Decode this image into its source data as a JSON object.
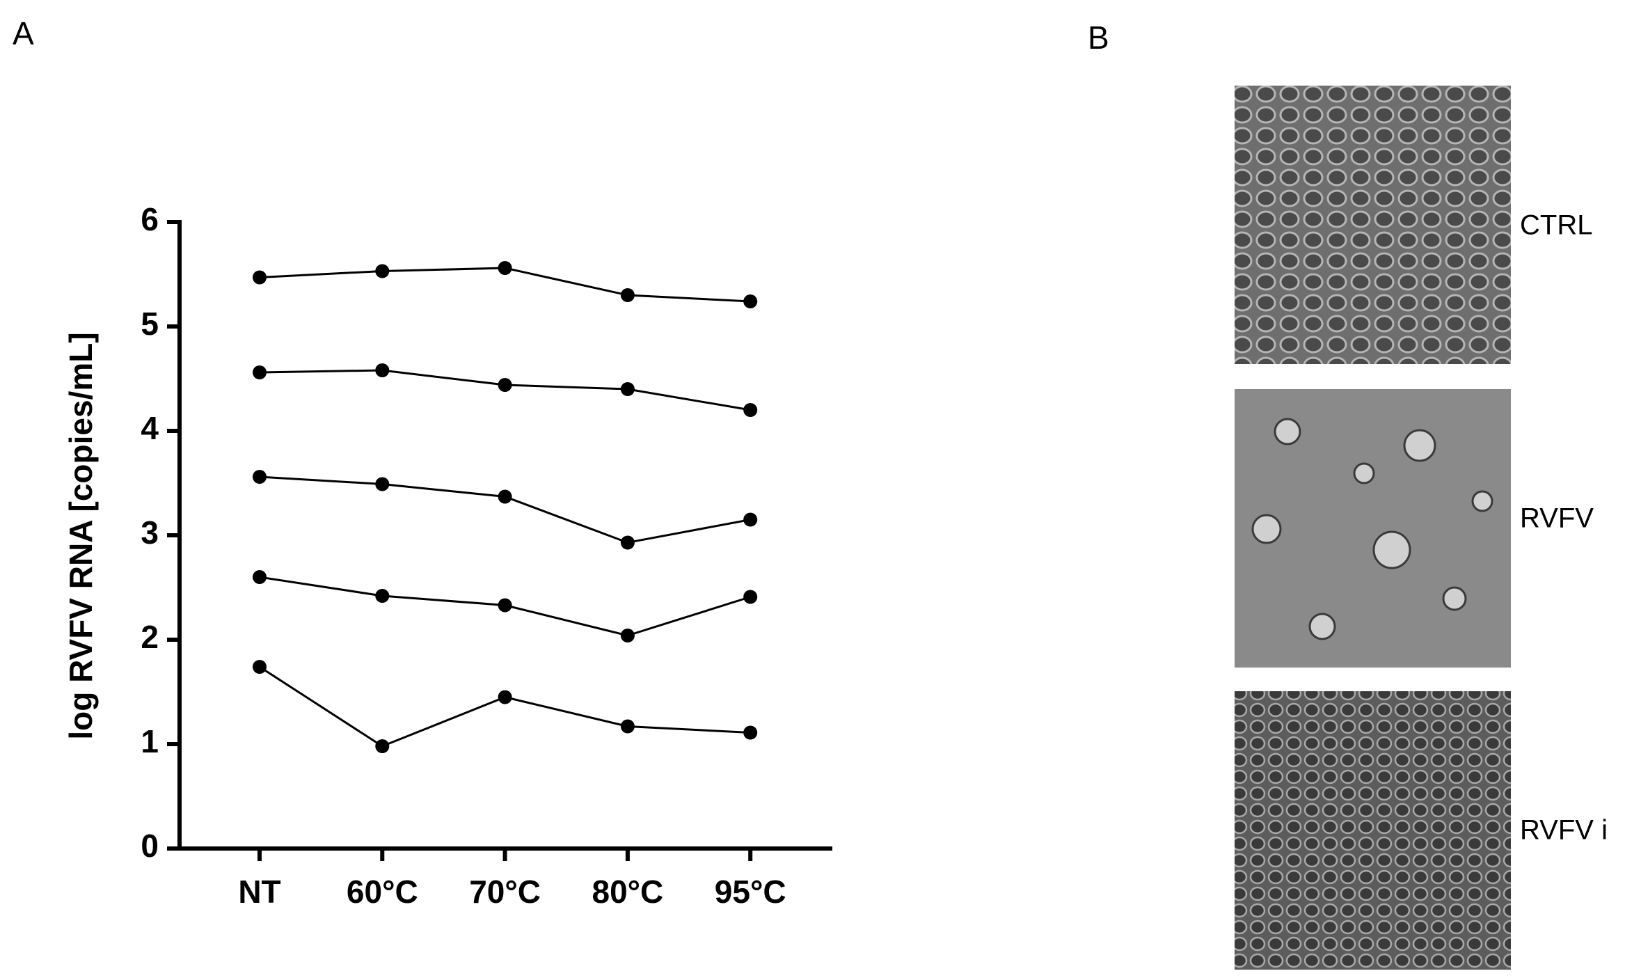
{
  "panel_a_label": "A",
  "chart_data": {
    "type": "line",
    "y_label": "log RVFV RNA [copies/mL]",
    "categories": [
      "NT",
      "60°C",
      "70°C",
      "80°C",
      "95°C"
    ],
    "series": [
      {
        "color": "#000000",
        "values": [
          5.47,
          5.53,
          5.56,
          5.3,
          5.24
        ]
      },
      {
        "color": "#000000",
        "values": [
          4.56,
          4.58,
          4.44,
          4.4,
          4.2
        ]
      },
      {
        "color": "#000000",
        "values": [
          3.56,
          3.49,
          3.37,
          2.93,
          3.15
        ]
      },
      {
        "color": "#000000",
        "values": [
          2.6,
          2.42,
          2.33,
          2.04,
          2.41
        ]
      },
      {
        "color": "#000000",
        "values": [
          1.74,
          0.98,
          1.45,
          1.17,
          1.11
        ]
      }
    ],
    "ylim": [
      0,
      6
    ],
    "yticks": [
      0,
      1,
      2,
      3,
      4,
      5,
      6
    ],
    "grid": false
  },
  "panel_b": {
    "label": "B",
    "images": [
      "CTRL",
      "RVFV",
      "RVFV i"
    ]
  }
}
